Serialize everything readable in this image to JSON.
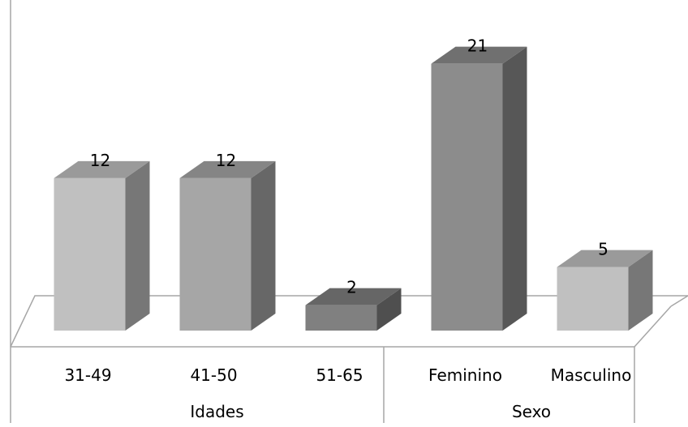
{
  "chart_data": {
    "type": "bar",
    "title": "",
    "xlabel": "",
    "ylabel": "",
    "ylim": [
      0,
      22
    ],
    "grid": false,
    "legend": "none",
    "groups": [
      {
        "label": "Idades",
        "categories": [
          "31-49",
          "41-50",
          "51-65"
        ]
      },
      {
        "label": "Sexo",
        "categories": [
          "Feminino",
          "Masculino"
        ]
      }
    ],
    "categories": [
      "31-49",
      "41-50",
      "51-65",
      "Feminino",
      "Masculino"
    ],
    "values": [
      12,
      12,
      2,
      21,
      5
    ],
    "data_labels": [
      "12",
      "12",
      "2",
      "21",
      "5"
    ],
    "bar_colors": [
      "#c0c0c0",
      "#a6a6a6",
      "#808080",
      "#8c8c8c",
      "#c0c0c0"
    ]
  }
}
